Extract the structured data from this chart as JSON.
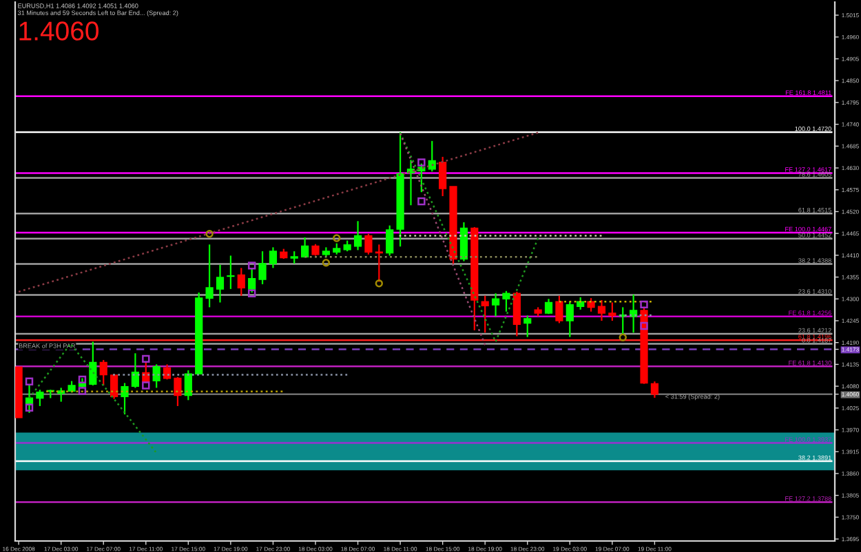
{
  "chart_data": {
    "type": "candlestick",
    "title": "EURUSD,H1 1.4086 1.4092 1.4051 1.4060",
    "subtitle": "31 Minutes and 59 Seconds Left to Bar End... (Spread: 2)",
    "x": [
      "2008-12-16T23:00",
      "2008-12-17T00:00",
      "2008-12-17T01:00",
      "2008-12-17T02:00",
      "2008-12-17T03:00",
      "2008-12-17T04:00",
      "2008-12-17T05:00",
      "2008-12-17T06:00",
      "2008-12-17T07:00",
      "2008-12-17T08:00",
      "2008-12-17T09:00",
      "2008-12-17T10:00",
      "2008-12-17T11:00",
      "2008-12-17T12:00",
      "2008-12-17T13:00",
      "2008-12-17T14:00",
      "2008-12-17T15:00",
      "2008-12-17T16:00",
      "2008-12-17T17:00",
      "2008-12-17T18:00",
      "2008-12-17T19:00",
      "2008-12-17T20:00",
      "2008-12-17T21:00",
      "2008-12-17T22:00",
      "2008-12-17T23:00",
      "2008-12-18T00:00",
      "2008-12-18T01:00",
      "2008-12-18T02:00",
      "2008-12-18T03:00",
      "2008-12-18T04:00",
      "2008-12-18T05:00",
      "2008-12-18T06:00",
      "2008-12-18T07:00",
      "2008-12-18T08:00",
      "2008-12-18T09:00",
      "2008-12-18T10:00",
      "2008-12-18T11:00",
      "2008-12-18T12:00",
      "2008-12-18T13:00",
      "2008-12-18T14:00",
      "2008-12-18T15:00",
      "2008-12-18T16:00",
      "2008-12-18T17:00",
      "2008-12-18T18:00",
      "2008-12-18T19:00",
      "2008-12-18T20:00",
      "2008-12-18T21:00",
      "2008-12-18T22:00",
      "2008-12-18T23:00",
      "2008-12-19T00:00",
      "2008-12-19T01:00",
      "2008-12-19T02:00",
      "2008-12-19T03:00",
      "2008-12-19T04:00",
      "2008-12-19T05:00",
      "2008-12-19T06:00",
      "2008-12-19T07:00",
      "2008-12-19T08:00",
      "2008-12-19T09:00",
      "2008-12-19T10:00",
      "2008-12-19T11:00"
    ],
    "ohlc": [
      [
        1.4128,
        1.4129,
        1.4001,
        1.4001
      ],
      [
        1.4036,
        1.4082,
        1.4013,
        1.405
      ],
      [
        1.405,
        1.4071,
        1.403,
        1.4065
      ],
      [
        1.4067,
        1.4071,
        1.405,
        1.4069
      ],
      [
        1.4062,
        1.4076,
        1.4041,
        1.4068
      ],
      [
        1.4068,
        1.4093,
        1.4064,
        1.4082
      ],
      [
        1.408,
        1.41,
        1.4076,
        1.4088
      ],
      [
        1.4085,
        1.4192,
        1.4082,
        1.414
      ],
      [
        1.414,
        1.4146,
        1.4082,
        1.4109
      ],
      [
        1.4108,
        1.4111,
        1.4048,
        1.4054
      ],
      [
        1.4054,
        1.4088,
        1.4009,
        1.4079
      ],
      [
        1.408,
        1.4163,
        1.4076,
        1.4115
      ],
      [
        1.4114,
        1.414,
        1.4088,
        1.4092
      ],
      [
        1.4094,
        1.4135,
        1.4076,
        1.4129
      ],
      [
        1.4126,
        1.4135,
        1.4097,
        1.41
      ],
      [
        1.41,
        1.4103,
        1.403,
        1.4057
      ],
      [
        1.4057,
        1.412,
        1.4045,
        1.4111
      ],
      [
        1.4111,
        1.4316,
        1.411,
        1.4302
      ],
      [
        1.4302,
        1.4437,
        1.4279,
        1.4328
      ],
      [
        1.4325,
        1.4386,
        1.4291,
        1.4354
      ],
      [
        1.4357,
        1.4409,
        1.4325,
        1.4358
      ],
      [
        1.436,
        1.4378,
        1.4308,
        1.4328
      ],
      [
        1.4325,
        1.4378,
        1.4316,
        1.4351
      ],
      [
        1.4349,
        1.442,
        1.4337,
        1.4389
      ],
      [
        1.4389,
        1.443,
        1.4378,
        1.442
      ],
      [
        1.4418,
        1.4426,
        1.4401,
        1.4404
      ],
      [
        1.4403,
        1.442,
        1.4389,
        1.4406
      ],
      [
        1.4406,
        1.4455,
        1.4404,
        1.4433
      ],
      [
        1.4433,
        1.4438,
        1.4409,
        1.4412
      ],
      [
        1.4412,
        1.443,
        1.4406,
        1.442
      ],
      [
        1.4418,
        1.444,
        1.4412,
        1.4427
      ],
      [
        1.4424,
        1.4447,
        1.442,
        1.4436
      ],
      [
        1.4433,
        1.4496,
        1.4423,
        1.4459
      ],
      [
        1.4459,
        1.4464,
        1.4412,
        1.4418
      ],
      [
        1.4418,
        1.4437,
        1.4343,
        1.4416
      ],
      [
        1.4416,
        1.4485,
        1.4409,
        1.4474
      ],
      [
        1.4476,
        1.472,
        1.4432,
        1.4615
      ],
      [
        1.4618,
        1.465,
        1.4536,
        1.4627
      ],
      [
        1.4623,
        1.4641,
        1.4569,
        1.4631
      ],
      [
        1.4627,
        1.4698,
        1.4621,
        1.4648
      ],
      [
        1.4644,
        1.4658,
        1.4559,
        1.4578
      ],
      [
        1.4583,
        1.4583,
        1.4389,
        1.4401
      ],
      [
        1.4401,
        1.4493,
        1.4395,
        1.4478
      ],
      [
        1.4478,
        1.4481,
        1.4221,
        1.4297
      ],
      [
        1.4293,
        1.4308,
        1.4215,
        1.4283
      ],
      [
        1.4285,
        1.4314,
        1.4256,
        1.43
      ],
      [
        1.43,
        1.432,
        1.4268,
        1.4314
      ],
      [
        1.4314,
        1.4318,
        1.4206,
        1.4236
      ],
      [
        1.4239,
        1.4258,
        1.4204,
        1.425
      ],
      [
        1.4272,
        1.4279,
        1.4256,
        1.4264
      ],
      [
        1.4264,
        1.43,
        1.4262,
        1.4291
      ],
      [
        1.4293,
        1.4308,
        1.4239,
        1.4245
      ],
      [
        1.4245,
        1.4293,
        1.4204,
        1.4285
      ],
      [
        1.4281,
        1.4304,
        1.4273,
        1.4293
      ],
      [
        1.4293,
        1.4302,
        1.4268,
        1.4279
      ],
      [
        1.4281,
        1.4297,
        1.4245,
        1.4264
      ],
      [
        1.4264,
        1.4291,
        1.4245,
        1.4258
      ],
      [
        1.4257,
        1.4279,
        1.4211,
        1.4259
      ],
      [
        1.4256,
        1.4311,
        1.4215,
        1.4271
      ],
      [
        1.4271,
        1.428,
        1.4086,
        1.4088
      ],
      [
        1.4086,
        1.4092,
        1.4051,
        1.406
      ]
    ],
    "colors": [
      "#ff0000",
      "#00ff00",
      "#00ff00",
      "#00ff00",
      "#00ff00",
      "#00ff00",
      "#00ff00",
      "#00ff00",
      "#ff0000",
      "#ff0000",
      "#00ff00",
      "#00ff00",
      "#ff0000",
      "#00ff00",
      "#ff0000",
      "#ff0000",
      "#00ff00",
      "#00ff00",
      "#00ff00",
      "#00ff00",
      "#00ff00",
      "#ff0000",
      "#00ff00",
      "#00ff00",
      "#00ff00",
      "#ff0000",
      "#00ff00",
      "#00ff00",
      "#ff0000",
      "#00ff00",
      "#00ff00",
      "#00ff00",
      "#00ff00",
      "#ff0000",
      "#ff0000",
      "#00ff00",
      "#00ff00",
      "#00ff00",
      "#00ff00",
      "#00ff00",
      "#ff0000",
      "#ff0000",
      "#00ff00",
      "#ff0000",
      "#ff0000",
      "#00ff00",
      "#00ff00",
      "#ff0000",
      "#00ff00",
      "#ff0000",
      "#00ff00",
      "#ff0000",
      "#00ff00",
      "#00ff00",
      "#ff0000",
      "#ff0000",
      "#ff0000",
      "#00ff00",
      "#00ff00",
      "#ff0000",
      "#ff0000"
    ],
    "series": [
      {
        "type": "line",
        "x": [
          "2008-12-16T23:00",
          "2008-12-19T00:00"
        ],
        "values": [
          1.4318,
          1.4719
        ],
        "color": "#8c3c46",
        "line_style": "dotted"
      },
      {
        "type": "line",
        "x": [
          "2008-12-17T00:00",
          "2008-12-17T03:54",
          "2008-12-17T11:56"
        ],
        "values": [
          1.405,
          1.4187,
          1.3914
        ],
        "color": "#1f9a1f",
        "line_style": "dotted"
      },
      {
        "type": "line",
        "x": [
          "2008-12-18T11:00",
          "2008-12-18T20:00",
          "2008-12-19T00:00"
        ],
        "values": [
          1.4718,
          1.4192,
          1.4453
        ],
        "color": "#1f9a1f",
        "line_style": "dotted"
      },
      {
        "type": "line",
        "x": [
          "2008-12-18T11:00",
          "2008-12-18T19:00"
        ],
        "values": [
          1.4717,
          1.4184
        ],
        "color": "#9a4a70",
        "line_style": "dotted"
      },
      {
        "type": "line",
        "x": [
          "2008-12-17T01:36",
          "2008-12-17T23:54"
        ],
        "values": [
          1.4067,
          1.4067
        ],
        "color": "#b8a000",
        "line_style": "dotted"
      },
      {
        "type": "line",
        "x": [
          "2008-12-17T07:54",
          "2008-12-18T06:00"
        ],
        "values": [
          1.4109,
          1.4109
        ],
        "color": "#8a94a8",
        "line_style": "dotted"
      },
      {
        "type": "line",
        "x": [
          "2008-12-18T02:00",
          "2008-12-18T23:54"
        ],
        "values": [
          1.4406,
          1.4406
        ],
        "color": "#8a8a5a",
        "line_style": "dotted"
      },
      {
        "type": "line",
        "x": [
          "2008-12-18T10:54",
          "2008-12-19T06:00"
        ],
        "values": [
          1.4459,
          1.4459
        ],
        "color": "#d0c8b0",
        "line_style": "dotted"
      },
      {
        "type": "line",
        "x": [
          "2008-12-19T02:00",
          "2008-12-19T10:42"
        ],
        "values": [
          1.4293,
          1.4293
        ],
        "color": "#c8b000",
        "line_style": "dotted"
      },
      {
        "type": "line",
        "x": [
          "2008-12-19T07:42",
          "2008-12-19T10:42"
        ],
        "values": [
          1.4259,
          1.4259
        ],
        "color": "#8a94a8",
        "line_style": "dotted"
      },
      {
        "type": "scatter",
        "x": [
          "2008-12-17T00:00",
          "2008-12-17T00:00",
          "2008-12-17T05:00",
          "2008-12-17T05:00",
          "2008-12-17T11:00",
          "2008-12-17T11:00",
          "2008-12-17T21:00",
          "2008-12-17T21:00",
          "2008-12-18T13:00",
          "2008-12-18T13:00",
          "2008-12-19T10:00",
          "2008-12-19T10:00"
        ],
        "values": [
          1.4092,
          1.4026,
          1.4097,
          1.4068,
          1.4149,
          1.4082,
          1.4384,
          1.4314,
          1.4644,
          1.4546,
          1.4286,
          1.4232
        ],
        "color": "#a030c8",
        "marker": "square"
      },
      {
        "type": "scatter",
        "x": [
          "2008-12-17T17:00",
          "2008-12-18T04:00",
          "2008-12-18T05:00",
          "2008-12-18T09:00",
          "2008-12-19T08:00"
        ],
        "values": [
          1.4464,
          1.4391,
          1.4453,
          1.4339,
          1.4203
        ],
        "color": "#a08a00",
        "marker": "circle"
      }
    ],
    "ref_lines": [
      {
        "axis": "y",
        "value": 1.4811,
        "label": "FE 161.8 1.4811",
        "color": "#ff00ff"
      },
      {
        "axis": "y",
        "value": 1.472,
        "label": "100.0 1.4720",
        "color": "#ffffff"
      },
      {
        "axis": "y",
        "value": 1.4617,
        "label": "FE 127.2 1.4617",
        "color": "#ff00ff"
      },
      {
        "axis": "y",
        "value": 1.4605,
        "label": "78.6 1.4605",
        "color": "#a0a0a0"
      },
      {
        "axis": "y",
        "value": 1.4515,
        "label": "61.8 1.4515",
        "color": "#a0a0a0"
      },
      {
        "axis": "y",
        "value": 1.4467,
        "label": "FE 100.0 1.4467",
        "color": "#ff00ff"
      },
      {
        "axis": "y",
        "value": 1.4452,
        "label": "50.0 1.4452",
        "color": "#a0a0a0"
      },
      {
        "axis": "y",
        "value": 1.4388,
        "label": "38.2 1.4388",
        "color": "#a0a0a0"
      },
      {
        "axis": "y",
        "value": 1.431,
        "label": "23.6 1.4310",
        "color": "#a0a0a0"
      },
      {
        "axis": "y",
        "value": 1.4256,
        "label": "FE 61.8 1.4256",
        "color": "#d000d0"
      },
      {
        "axis": "y",
        "value": 1.4212,
        "label": "23.6 1.4212",
        "color": "#a0a0a0"
      },
      {
        "axis": "y",
        "value": 1.4196,
        "label": "61.8 1.4196",
        "color": "#ff2020"
      },
      {
        "axis": "y",
        "value": 1.4187,
        "label": "0.0 1.4187",
        "color": "#a0a0a0"
      },
      {
        "axis": "y",
        "value": 1.4173,
        "color": "#7b3fbf",
        "line_style": "dashed"
      },
      {
        "axis": "y",
        "value": 1.413,
        "label": "FE 61.8 1.4130",
        "color": "#c020c0"
      },
      {
        "axis": "y",
        "value": 1.406,
        "color": "#707070"
      },
      {
        "axis": "y",
        "value": 1.3937,
        "label": "FE 100.0 1.3937",
        "color": "#9a30d0"
      },
      {
        "axis": "y",
        "value": 1.3891,
        "label": "38.2 1.3891",
        "color": "#ffffff"
      },
      {
        "axis": "y",
        "value": 1.3788,
        "label": "FE 127.2 1.3788",
        "color": "#c020c0"
      }
    ],
    "bands": [
      {
        "axis": "y",
        "from": 1.3868,
        "to": 1.3963,
        "color": "#0b8b8b"
      }
    ],
    "annotations": [
      "1.4060",
      {
        "text": "BREAK of P3H PAR",
        "x": "2008-12-16T23:00",
        "y": 1.4173
      },
      {
        "text": "< 31:59 (Spread: 2)",
        "x": "2008-12-19T12:00",
        "y": 1.406
      }
    ],
    "xlim": [
      "2008-12-16T22:40",
      "2008-12-20T04:00"
    ],
    "xticks": [
      {
        "value": "2008-12-16T23:00",
        "label": "16 Dec 2008"
      },
      {
        "value": "2008-12-17T03:00",
        "label": "17 Dec 03:00"
      },
      {
        "value": "2008-12-17T07:00",
        "label": "17 Dec 07:00"
      },
      {
        "value": "2008-12-17T11:00",
        "label": "17 Dec 11:00"
      },
      {
        "value": "2008-12-17T15:00",
        "label": "17 Dec 15:00"
      },
      {
        "value": "2008-12-17T19:00",
        "label": "17 Dec 19:00"
      },
      {
        "value": "2008-12-17T23:00",
        "label": "17 Dec 23:00"
      },
      {
        "value": "2008-12-18T03:00",
        "label": "18 Dec 03:00"
      },
      {
        "value": "2008-12-18T07:00",
        "label": "18 Dec 07:00"
      },
      {
        "value": "2008-12-18T11:00",
        "label": "18 Dec 11:00"
      },
      {
        "value": "2008-12-18T15:00",
        "label": "18 Dec 15:00"
      },
      {
        "value": "2008-12-18T19:00",
        "label": "18 Dec 19:00"
      },
      {
        "value": "2008-12-18T23:00",
        "label": "18 Dec 23:00"
      },
      {
        "value": "2008-12-19T03:00",
        "label": "19 Dec 03:00"
      },
      {
        "value": "2008-12-19T07:00",
        "label": "19 Dec 07:00"
      },
      {
        "value": "2008-12-19T11:00",
        "label": "19 Dec 11:00"
      }
    ],
    "ylim": [
      1.369,
      1.5048
    ],
    "yticks": [
      1.3695,
      {
        "value": 1.375,
        "label": "1.3750"
      },
      1.3805,
      {
        "value": 1.386,
        "label": "1.3860"
      },
      1.3915,
      {
        "value": 1.397,
        "label": "1.3970"
      },
      1.4025,
      {
        "value": 1.408,
        "label": "1.4080"
      },
      1.4135,
      {
        "value": 1.419,
        "label": "1.4190"
      },
      1.4245,
      {
        "value": 1.43,
        "label": "1.4300"
      },
      1.4355,
      {
        "value": 1.441,
        "label": "1.4410"
      },
      1.4465,
      {
        "value": 1.452,
        "label": "1.4520"
      },
      1.4575,
      {
        "value": 1.463,
        "label": "1.4630"
      },
      1.4685,
      {
        "value": 1.474,
        "label": "1.4740"
      },
      1.4795,
      {
        "value": 1.485,
        "label": "1.4850"
      },
      1.4905,
      {
        "value": 1.496,
        "label": "1.4960"
      },
      1.5015,
      {
        "value": 1.4173,
        "label": "1.4173"
      },
      {
        "value": 1.406,
        "label": "1.4060"
      }
    ]
  }
}
